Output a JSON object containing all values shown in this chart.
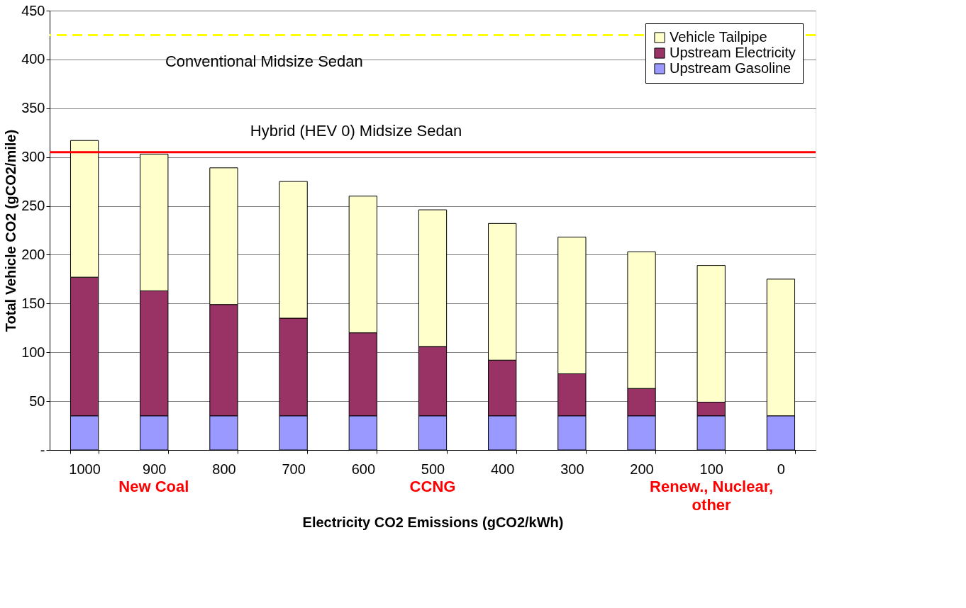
{
  "chart_data": {
    "type": "bar",
    "stacked": true,
    "xlabel": "Electricity CO2 Emissions (gCO2/kWh)",
    "ylabel": "Total Vehicle CO2 (gCO2/mile)",
    "categories": [
      "1000",
      "900",
      "800",
      "700",
      "600",
      "500",
      "400",
      "300",
      "200",
      "100",
      "0"
    ],
    "series": [
      {
        "name": "Upstream Gasoline",
        "color": "#9999ff",
        "values": [
          35,
          35,
          35,
          35,
          35,
          35,
          35,
          35,
          35,
          35,
          35
        ]
      },
      {
        "name": "Upstream Electricity",
        "color": "#993366",
        "values": [
          142,
          128,
          114,
          100,
          85,
          71,
          57,
          43,
          28,
          14,
          0
        ]
      },
      {
        "name": "Vehicle Tailpipe",
        "color": "#ffffcc",
        "values": [
          140,
          140,
          140,
          140,
          140,
          140,
          140,
          140,
          140,
          140,
          140
        ]
      }
    ],
    "ylim": [
      0,
      450
    ],
    "yticks": [
      {
        "value": 0,
        "label": "-"
      },
      50,
      100,
      150,
      200,
      250,
      300,
      350,
      400,
      450
    ],
    "grid": "y",
    "legend": "top right",
    "ref_lines": [
      {
        "axis": "y",
        "value": 425,
        "label": "Conventional Midsize Sedan",
        "color": "#ffff00",
        "line_style": "dashed"
      },
      {
        "axis": "y",
        "value": 305,
        "label": "Hybrid (HEV 0) Midsize Sedan",
        "color": "#ff0000",
        "line_style": "solid"
      }
    ],
    "annotations": [
      "New Coal",
      "CCNG",
      "Renew., Nuclear, other"
    ]
  }
}
